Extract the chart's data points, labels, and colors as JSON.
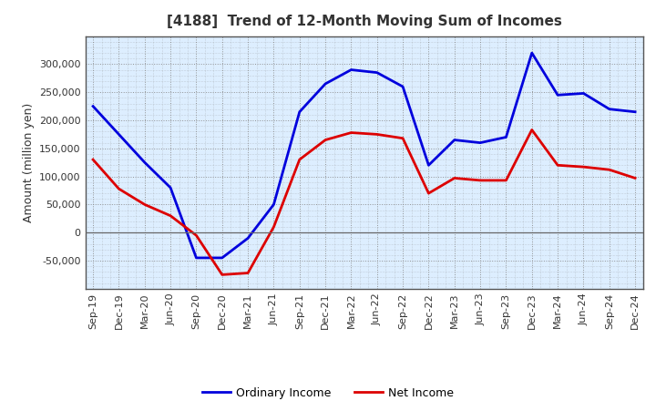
{
  "title": "[4188]  Trend of 12-Month Moving Sum of Incomes",
  "ylabel": "Amount (million yen)",
  "background_color": "#ffffff",
  "plot_background": "#ddeeff",
  "grid_color": "#888888",
  "labels": [
    "Sep-19",
    "Dec-19",
    "Mar-20",
    "Jun-20",
    "Sep-20",
    "Dec-20",
    "Mar-21",
    "Jun-21",
    "Sep-21",
    "Dec-21",
    "Mar-22",
    "Jun-22",
    "Sep-22",
    "Dec-22",
    "Mar-23",
    "Jun-23",
    "Sep-23",
    "Dec-23",
    "Mar-24",
    "Jun-24",
    "Sep-24",
    "Dec-24"
  ],
  "ordinary_income": [
    225000,
    175000,
    125000,
    80000,
    -45000,
    -45000,
    -10000,
    50000,
    215000,
    265000,
    290000,
    285000,
    260000,
    120000,
    165000,
    160000,
    170000,
    320000,
    245000,
    248000,
    220000,
    215000
  ],
  "net_income": [
    130000,
    78000,
    50000,
    30000,
    -5000,
    -75000,
    -72000,
    10000,
    130000,
    165000,
    178000,
    175000,
    168000,
    70000,
    97000,
    93000,
    93000,
    183000,
    120000,
    117000,
    112000,
    97000
  ],
  "ordinary_color": "#0000dd",
  "net_color": "#dd0000",
  "ylim": [
    -100000,
    350000
  ],
  "yticks": [
    -50000,
    0,
    50000,
    100000,
    150000,
    200000,
    250000,
    300000
  ],
  "line_width": 2.0,
  "title_fontsize": 11,
  "axis_fontsize": 8,
  "legend_labels": [
    "Ordinary Income",
    "Net Income"
  ],
  "title_color": "#333333"
}
